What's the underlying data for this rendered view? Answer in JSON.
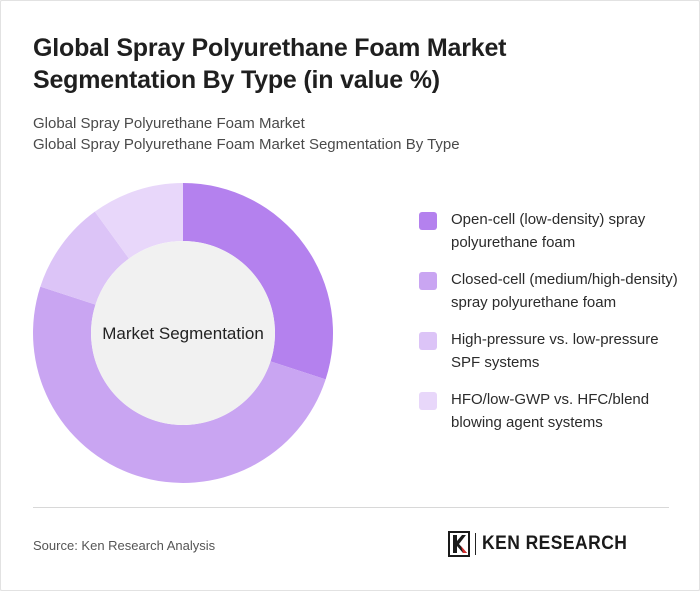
{
  "title": "Global Spray Polyurethane Foam Market Segmentation By Type (in value %)",
  "subtitle_lines": [
    "Global Spray Polyurethane Foam Market",
    "Global Spray Polyurethane Foam Market Segmentation By Type"
  ],
  "chart_data": {
    "type": "pie",
    "variant": "donut",
    "center_label": "Market Segmentation",
    "legend_position": "right",
    "slices": [
      {
        "label": "Open-cell (low-density) spray polyurethane foam",
        "value": 30,
        "color": "#b481ee"
      },
      {
        "label": "Closed-cell (medium/high-density) spray polyurethane foam",
        "value": 50,
        "color": "#c9a5f2"
      },
      {
        "label": "High-pressure vs. low-pressure SPF systems",
        "value": 10,
        "color": "#dcc4f7"
      },
      {
        "label": "HFO/low-GWP vs. HFC/blend blowing agent systems",
        "value": 10,
        "color": "#e8d7fa"
      }
    ],
    "center_color": "#f1f1f1"
  },
  "footer": {
    "source": "Source: Ken Research Analysis",
    "logo_text": "KEN RESEARCH"
  }
}
